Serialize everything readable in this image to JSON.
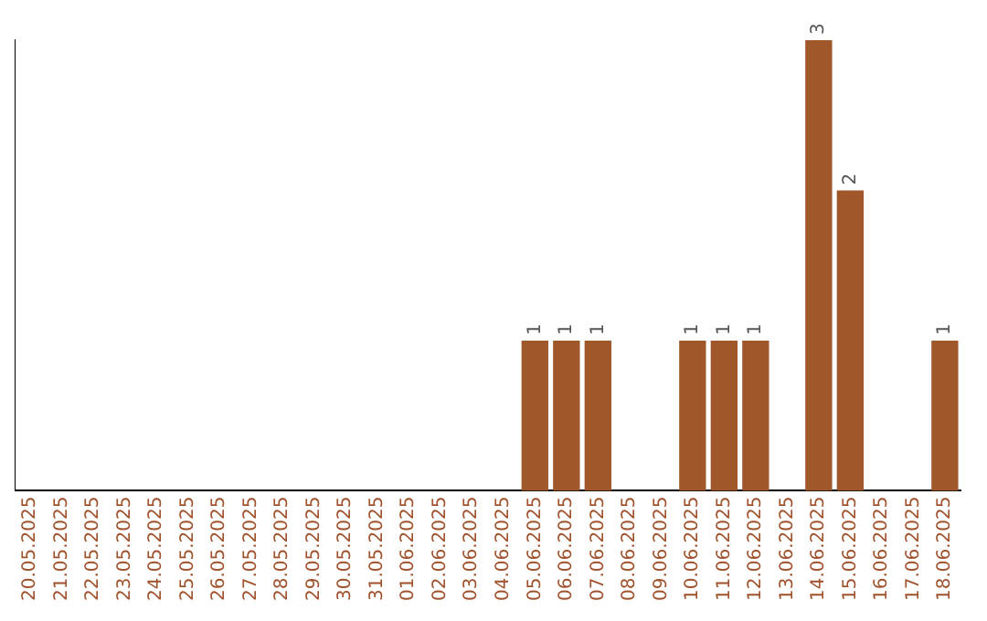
{
  "chart_data": {
    "type": "bar",
    "categories": [
      "20.05.2025",
      "21.05.2025",
      "22.05.2025",
      "23.05.2025",
      "24.05.2025",
      "25.05.2025",
      "26.05.2025",
      "27.05.2025",
      "28.05.2025",
      "29.05.2025",
      "30.05.2025",
      "31.05.2025",
      "01.06.2025",
      "02.06.2025",
      "03.06.2025",
      "04.06.2025",
      "05.06.2025",
      "06.06.2025",
      "07.06.2025",
      "08.06.2025",
      "09.06.2025",
      "10.06.2025",
      "11.06.2025",
      "12.06.2025",
      "13.06.2025",
      "14.06.2025",
      "15.06.2025",
      "16.06.2025",
      "17.06.2025",
      "18.06.2025"
    ],
    "values": [
      null,
      null,
      null,
      null,
      null,
      null,
      null,
      null,
      null,
      null,
      null,
      null,
      null,
      null,
      null,
      null,
      1,
      1,
      1,
      null,
      null,
      1,
      1,
      1,
      null,
      3,
      2,
      null,
      null,
      1
    ],
    "data_labels": true,
    "color": "#a0582a",
    "grid": false,
    "legend": false
  }
}
